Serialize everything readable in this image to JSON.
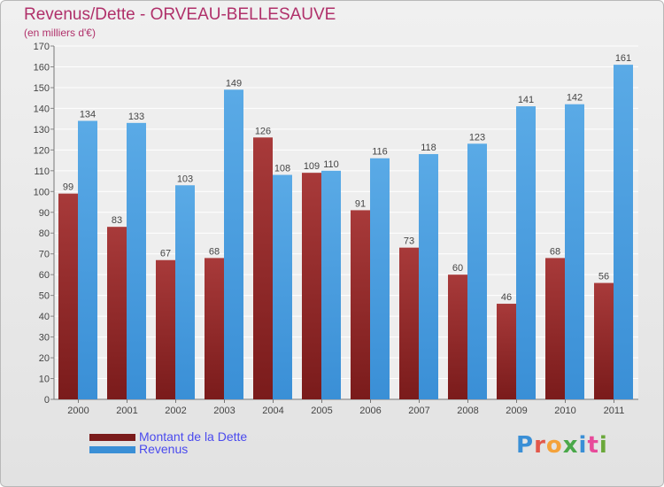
{
  "header": {
    "title": "Revenus/Dette - ORVEAU-BELLESAUVE",
    "subtitle": "(en milliers d'€)"
  },
  "legend": {
    "debt_label": "Montant de la Dette",
    "revenue_label": "Revenus"
  },
  "logo": {
    "text": "Proxiti",
    "letter_colors": [
      "#3a8fd6",
      "#e2584b",
      "#f4a23a",
      "#4aa84a",
      "#3a8fd6",
      "#e84a9a",
      "#6aa83a"
    ]
  },
  "colors": {
    "debt": "#7a1b1b",
    "debt_light": "#a83a3a",
    "revenue": "#3a8fd6",
    "revenue_light": "#5aaae6",
    "title": "#b0306a",
    "legend_text": "#4a4aee"
  },
  "chart_data": {
    "type": "bar",
    "categories": [
      "2000",
      "2001",
      "2002",
      "2003",
      "2004",
      "2005",
      "2006",
      "2007",
      "2008",
      "2009",
      "2010",
      "2011"
    ],
    "series": [
      {
        "name": "Montant de la Dette",
        "values": [
          99,
          83,
          67,
          68,
          126,
          109,
          91,
          73,
          60,
          46,
          68,
          56
        ]
      },
      {
        "name": "Revenus",
        "values": [
          134,
          133,
          103,
          149,
          108,
          110,
          116,
          118,
          123,
          141,
          142,
          161
        ]
      }
    ],
    "ylim": [
      0,
      170
    ],
    "yticks": [
      0,
      10,
      20,
      30,
      40,
      50,
      60,
      70,
      80,
      90,
      100,
      110,
      120,
      130,
      140,
      150,
      160,
      170
    ],
    "grid": true,
    "data_labels": true,
    "legend_position": "bottom-left"
  }
}
